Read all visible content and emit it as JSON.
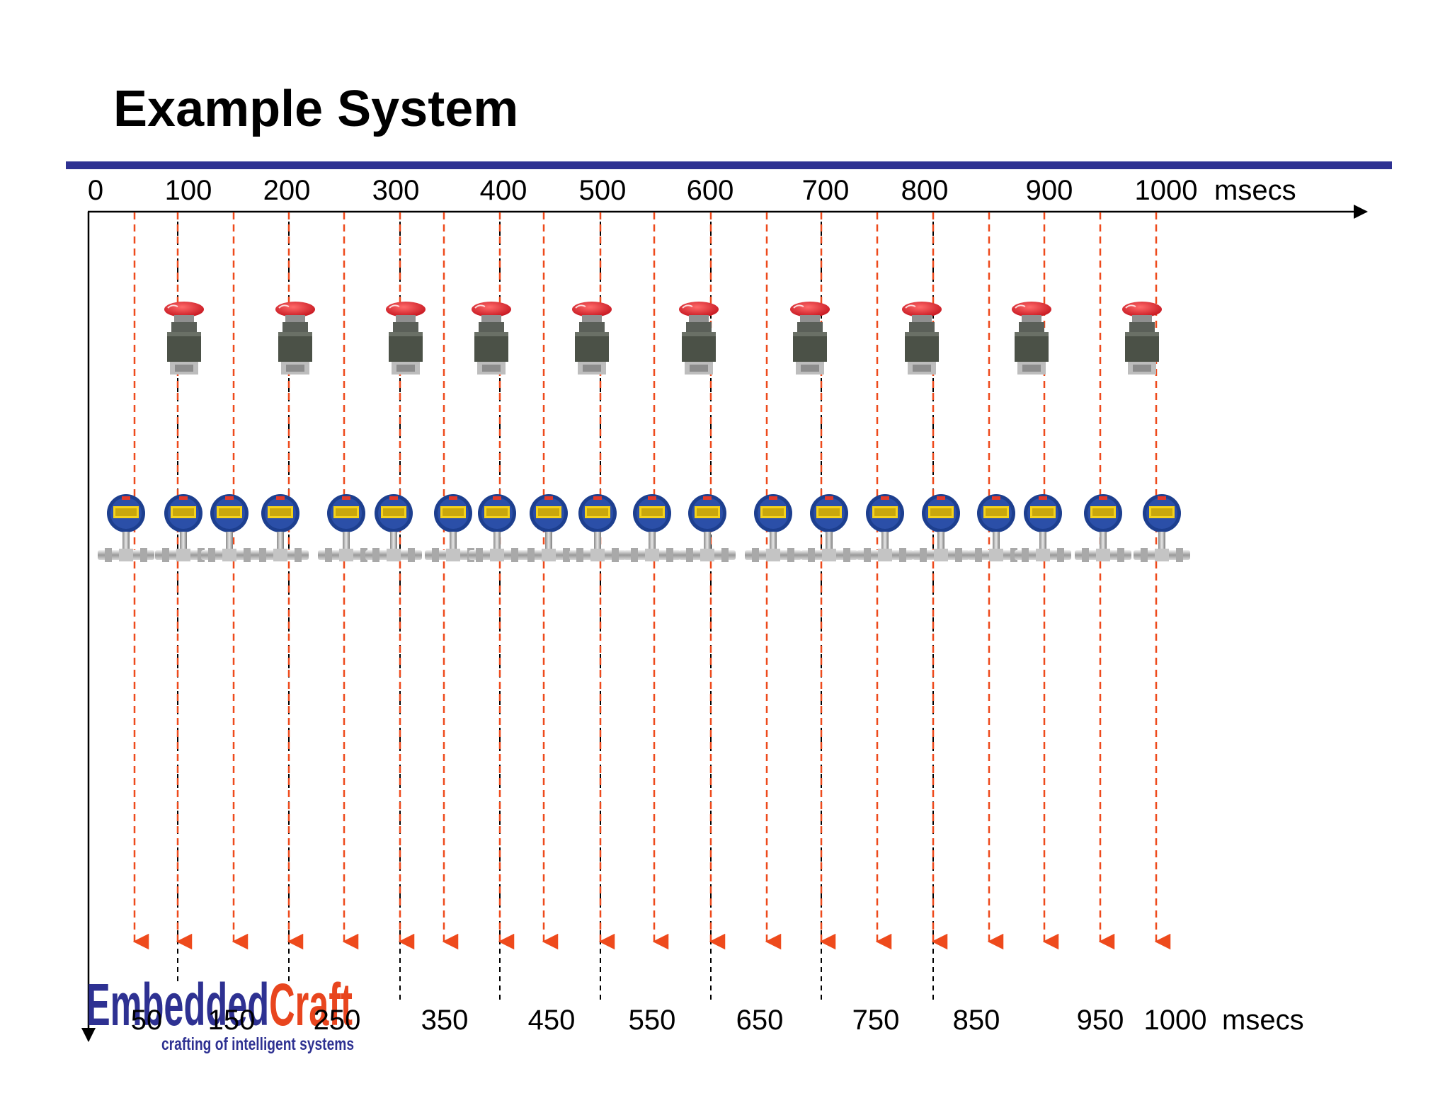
{
  "title": "Example System",
  "top_axis": {
    "ticks": [
      "0",
      "100",
      "200",
      "300",
      "400",
      "500",
      "600",
      "700",
      "800",
      "900",
      "1000"
    ],
    "unit": "msecs"
  },
  "bottom_axis": {
    "ticks": [
      "50",
      "150",
      "250",
      "350",
      "450",
      "550",
      "650",
      "750",
      "850",
      "950",
      "1000"
    ],
    "unit": "msecs"
  },
  "logo": {
    "part1": "Embedded",
    "part2": "Craft",
    "tagline": "crafting of intelligent systems"
  },
  "devices": {
    "button_icon": "emergency-stop-button-icon",
    "sensor_icon": "pressure-sensor-icon",
    "button_count": 10,
    "sensor_count": 20
  },
  "colors": {
    "title_rule": "#2e3192",
    "event_arrow": "#ee4a1c",
    "tick_line": "#000000",
    "logo_blue": "#2e3192",
    "logo_orange": "#e8451e"
  }
}
